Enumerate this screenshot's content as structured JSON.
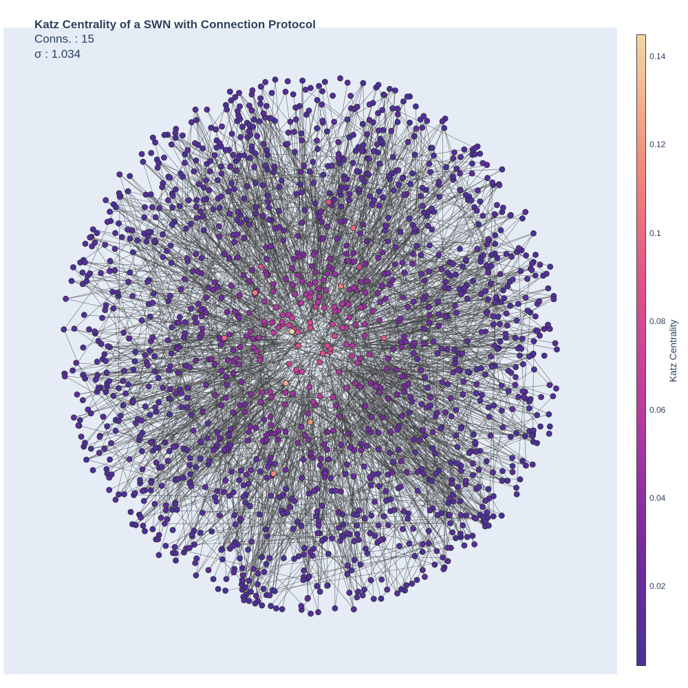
{
  "title": {
    "main": "Katz Centrality of a SWN with Connection Protocol",
    "line2": "Conns. : 15",
    "line3": "σ : 1.034"
  },
  "colors": {
    "plot_bg": "#e5ecf6",
    "edge": "#3f3f3f",
    "node_border": "#2b2b2b",
    "colorscale": [
      "#47319c",
      "#7a2aa0",
      "#b93aa0",
      "#e0508a",
      "#f58c78",
      "#f2d7a5"
    ]
  },
  "chart_data": {
    "type": "scatter",
    "title": "Katz Centrality of a SWN with Connection Protocol",
    "subtitle": [
      "Conns. : 15",
      "σ : 1.034"
    ],
    "colorbar": {
      "title": "Katz Centrality",
      "range": [
        0.002,
        0.145
      ],
      "ticks": [
        0.02,
        0.04,
        0.06,
        0.08,
        0.1,
        0.12,
        0.14
      ],
      "tick_labels": [
        "0.02",
        "0.04",
        "0.06",
        "0.08",
        "0.1",
        "0.12",
        "0.14"
      ]
    },
    "nodes": [
      {
        "x": 0.47,
        "y": 0.47,
        "katz": 0.145
      },
      {
        "x": 0.46,
        "y": 0.55,
        "katz": 0.13
      },
      {
        "x": 0.5,
        "y": 0.61,
        "katz": 0.12
      },
      {
        "x": 0.44,
        "y": 0.69,
        "katz": 0.115
      },
      {
        "x": 0.55,
        "y": 0.4,
        "katz": 0.11
      },
      {
        "x": 0.41,
        "y": 0.41,
        "katz": 0.11
      },
      {
        "x": 0.57,
        "y": 0.31,
        "katz": 0.1
      },
      {
        "x": 0.36,
        "y": 0.48,
        "katz": 0.1
      },
      {
        "x": 0.62,
        "y": 0.48,
        "katz": 0.095
      },
      {
        "x": 0.53,
        "y": 0.27,
        "katz": 0.09
      },
      {
        "x": 0.42,
        "y": 0.37,
        "katz": 0.085
      },
      {
        "x": 0.58,
        "y": 0.37,
        "katz": 0.08
      }
    ],
    "node_count_estimate": 3000,
    "connections_per_node": 15,
    "xaxis": {
      "visible": false
    },
    "yaxis": {
      "visible": false
    },
    "grid": false
  }
}
